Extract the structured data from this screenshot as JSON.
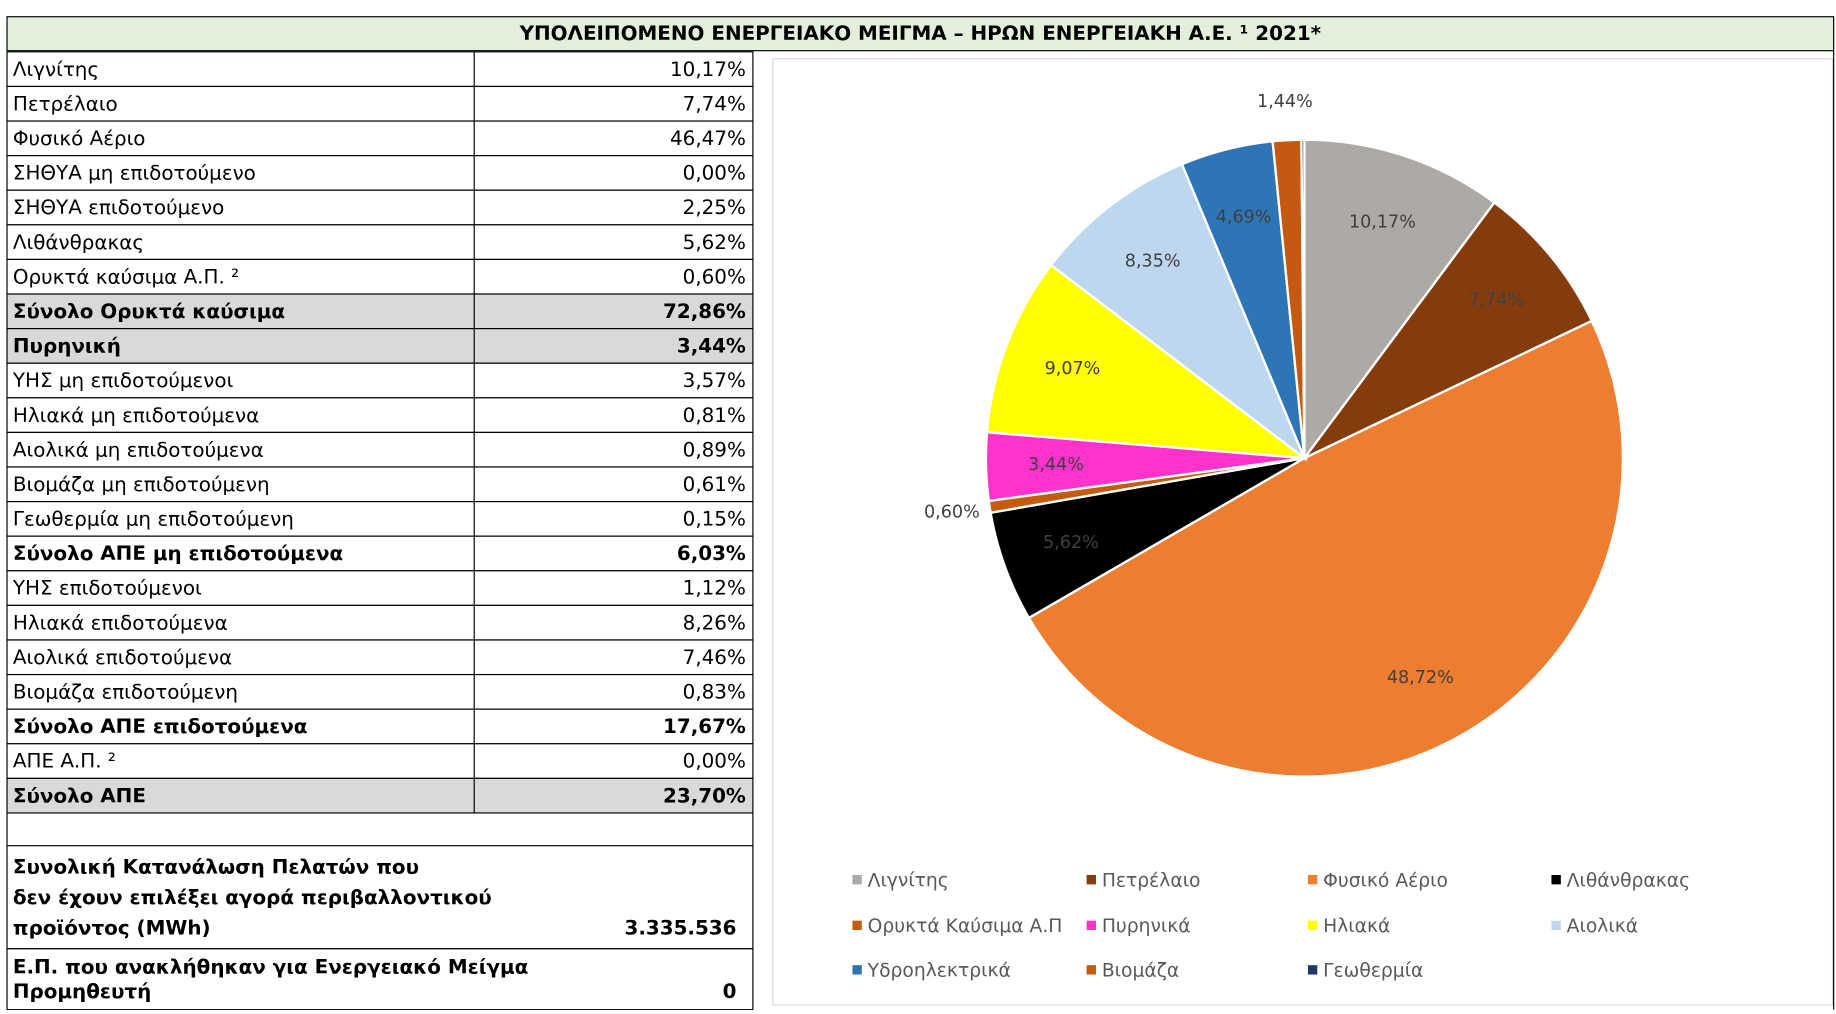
{
  "title": "ΥΠΟΛΕΙΠΟΜΕΝΟ ΕΝΕΡΓΕΙΑΚΟ ΜΕΙΓΜΑ – ΗΡΩΝ ΕΝΕΡΓΕΙΑΚΗ Α.Ε. ¹ 2021*",
  "table": {
    "rows": [
      {
        "label": "Λιγνίτης",
        "value": "10,17%"
      },
      {
        "label": "Πετρέλαιο",
        "value": "7,74%"
      },
      {
        "label": "Φυσικό Αέριο",
        "value": "46,47%"
      },
      {
        "label": "ΣΗΘΥΑ μη επιδοτούμενο",
        "value": "0,00%"
      },
      {
        "label": "ΣΗΘΥΑ επιδοτούμενο",
        "value": "2,25%"
      },
      {
        "label": "Λιθάνθρακας",
        "value": "5,62%"
      },
      {
        "label": "Ορυκτά καύσιμα Α.Π. ²",
        "value": "0,60%"
      },
      {
        "label": "Σύνολο Ορυκτά καύσιμα",
        "value": "72,86%",
        "bold": true,
        "shaded": true
      },
      {
        "label": "Πυρηνική",
        "value": "3,44%",
        "bold": true,
        "shaded": true
      },
      {
        "label": "ΥΗΣ μη επιδοτούμενοι",
        "value": "3,57%"
      },
      {
        "label": "Ηλιακά μη επιδοτούμενα",
        "value": "0,81%"
      },
      {
        "label": "Αιολικά μη επιδοτούμενα",
        "value": "0,89%"
      },
      {
        "label": "Βιομάζα μη επιδοτούμενη",
        "value": "0,61%"
      },
      {
        "label": "Γεωθερμία μη επιδοτούμενη",
        "value": "0,15%"
      },
      {
        "label": "Σύνολο ΑΠΕ μη επιδοτούμενα",
        "value": "6,03%",
        "bold": true
      },
      {
        "label": "ΥΗΣ επιδοτούμενοι",
        "value": "1,12%"
      },
      {
        "label": "Ηλιακά επιδοτούμενα",
        "value": "8,26%"
      },
      {
        "label": "Αιολικά επιδοτούμενα",
        "value": "7,46%"
      },
      {
        "label": "Βιομάζα επιδοτούμενη",
        "value": "0,83%"
      },
      {
        "label": "Σύνολο ΑΠΕ επιδοτούμενα",
        "value": "17,67%",
        "bold": true
      },
      {
        "label": "ΑΠΕ Α.Π. ²",
        "value": "0,00%"
      },
      {
        "label": "Σύνολο ΑΠΕ",
        "value": "23,70%",
        "bold": true,
        "shaded": true
      }
    ]
  },
  "summary": {
    "rows": [
      {
        "lines": [
          "Συνολική Κατανάλωση Πελατών που",
          "δεν έχουν επιλέξει αγορά περιβαλλοντικού",
          "προϊόντος (MWh)"
        ],
        "value": "3.335.536"
      },
      {
        "lines": [
          "Ε.Π. που ανακλήθηκαν για Ενεργειακό Μείγμα",
          " Προμηθευτή"
        ],
        "value": "0"
      }
    ]
  },
  "chart_data": {
    "type": "pie",
    "categories": [
      "Λιγνίτης",
      "Πετρέλαιο",
      "Φυσικό Αέριο",
      "Λιθάνθρακας",
      "Ορυκτά Καύσιμα Α.Π",
      "Πυρηνικά",
      "Ηλιακά",
      "Αιολικά",
      "Υδροηλεκτρικά",
      "Βιομάζα",
      "Γεωθερμία"
    ],
    "values": [
      10.17,
      7.74,
      48.72,
      5.62,
      0.6,
      3.44,
      9.07,
      8.35,
      4.69,
      1.44,
      0.15
    ],
    "value_labels": [
      "10,17%",
      "7,74%",
      "48,72%",
      "5,62%",
      "0,60%",
      "3,44%",
      "9,07%",
      "8,35%",
      "4,69%",
      "1,44%",
      null
    ],
    "colors": [
      "#ada9a5",
      "#843c0c",
      "#ed7d31",
      "#000000",
      "#c55a11",
      "#ff33cc",
      "#ffff00",
      "#bdd7ee",
      "#2e75b6",
      "#c65911",
      "#1f3864"
    ],
    "legend": "bottom"
  }
}
